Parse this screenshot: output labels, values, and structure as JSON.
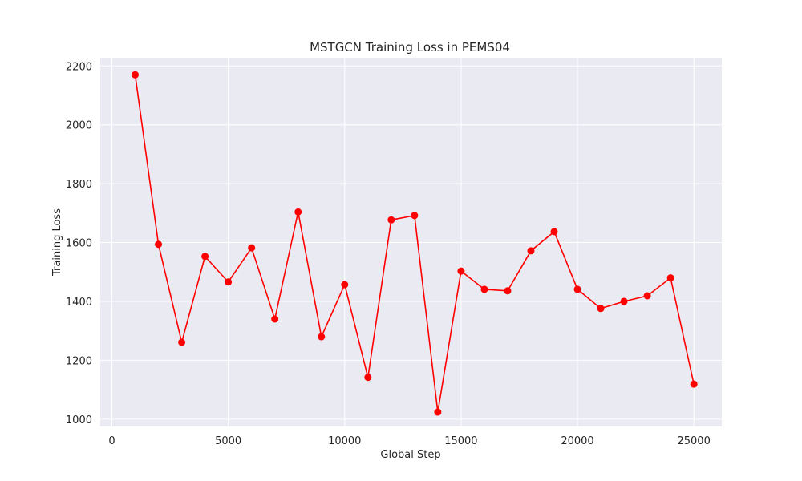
{
  "chart_data": {
    "type": "line",
    "title": "MSTGCN Training Loss in PEMS04",
    "xlabel": "Global Step",
    "ylabel": "Training Loss",
    "xlim": [
      -500,
      26200
    ],
    "ylim": [
      975,
      2228
    ],
    "xticks": [
      0,
      5000,
      10000,
      15000,
      20000,
      25000
    ],
    "yticks": [
      1000,
      1200,
      1400,
      1600,
      1800,
      2000,
      2200
    ],
    "grid": true,
    "colors": {
      "background": "#eaeaf2",
      "grid": "#ffffff",
      "line": "#ff0000",
      "marker": "#ff0000"
    },
    "series": [
      {
        "x": [
          1000,
          2000,
          3000,
          4000,
          5000,
          6000,
          7000,
          8000,
          9000,
          10000,
          11000,
          12000,
          13000,
          14000,
          15000,
          16000,
          17000,
          18000,
          19000,
          20000,
          21000,
          22000,
          23000,
          24000,
          25000
        ],
        "y": [
          2170,
          1594,
          1261,
          1553,
          1466,
          1582,
          1340,
          1704,
          1280,
          1457,
          1142,
          1677,
          1692,
          1024,
          1503,
          1441,
          1436,
          1572,
          1637,
          1441,
          1376,
          1400,
          1419,
          1480,
          1119
        ]
      }
    ]
  }
}
